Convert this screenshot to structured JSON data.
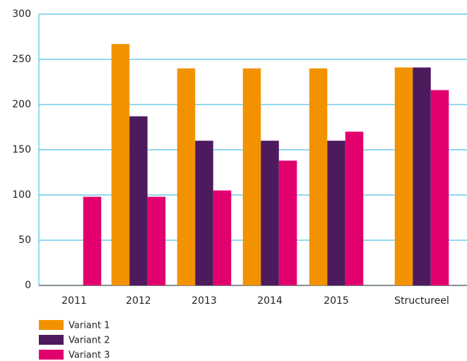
{
  "chart_data": {
    "type": "bar",
    "categories": [
      "2011",
      "2012",
      "2013",
      "2014",
      "2015",
      "Structureel"
    ],
    "series": [
      {
        "name": "Variant 1",
        "color": "#f39200",
        "values": [
          null,
          267,
          240,
          240,
          240,
          241
        ]
      },
      {
        "name": "Variant 2",
        "color": "#4d1a5e",
        "values": [
          null,
          187,
          160,
          160,
          160,
          241
        ]
      },
      {
        "name": "Variant 3",
        "color": "#e2006f",
        "values": [
          98,
          98,
          105,
          138,
          170,
          216
        ]
      }
    ],
    "ylim": [
      0,
      300
    ],
    "yticks": [
      0,
      50,
      100,
      150,
      200,
      250,
      300
    ],
    "grid": true
  }
}
